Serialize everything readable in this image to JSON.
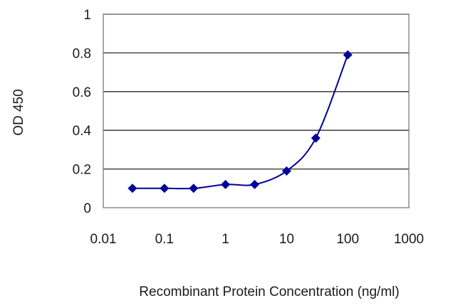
{
  "chart_data": {
    "type": "line",
    "title": "",
    "xlabel": "Recombinant Protein Concentration (ng/ml)",
    "ylabel": "OD 450",
    "x_scale": "log",
    "xlim": [
      0.01,
      1000
    ],
    "ylim": [
      0,
      1
    ],
    "x_ticks": [
      "0.01",
      "0.1",
      "1",
      "10",
      "100",
      "1000"
    ],
    "y_ticks": [
      "0",
      "0.2",
      "0.4",
      "0.6",
      "0.8",
      "1"
    ],
    "grid": "horizontal",
    "legend": "none",
    "series": [
      {
        "color": "#000099",
        "marker": "diamond",
        "x": [
          0.03,
          0.1,
          0.3,
          1,
          3,
          10,
          30,
          100
        ],
        "y": [
          0.1,
          0.1,
          0.1,
          0.12,
          0.12,
          0.19,
          0.36,
          0.79
        ]
      }
    ]
  }
}
